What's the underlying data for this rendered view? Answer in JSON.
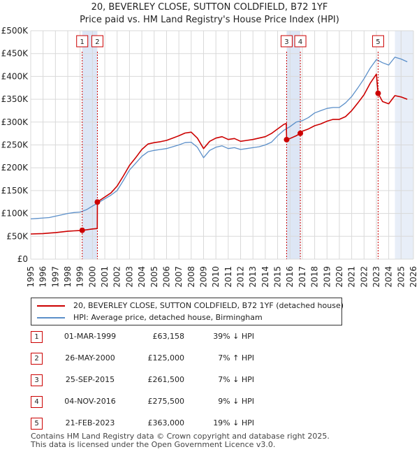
{
  "title": {
    "line1": "20, BEVERLEY CLOSE, SUTTON COLDFIELD, B72 1YF",
    "line2": "Price paid vs. HM Land Registry's House Price Index (HPI)"
  },
  "legend": {
    "series1_label": "20, BEVERLEY CLOSE, SUTTON COLDFIELD, B72 1YF (detached house)",
    "series2_label": "HPI: Average price, detached house, Birmingham"
  },
  "transactions": [
    {
      "num": "1",
      "date": "01-MAR-1999",
      "price": "£63,158",
      "hpi": "39% ↓ HPI"
    },
    {
      "num": "2",
      "date": "26-MAY-2000",
      "price": "£125,000",
      "hpi": "7% ↑ HPI"
    },
    {
      "num": "3",
      "date": "25-SEP-2015",
      "price": "£261,500",
      "hpi": "7% ↓ HPI"
    },
    {
      "num": "4",
      "date": "04-NOV-2016",
      "price": "£275,500",
      "hpi": "9% ↓ HPI"
    },
    {
      "num": "5",
      "date": "21-FEB-2023",
      "price": "£363,000",
      "hpi": "19% ↓ HPI"
    }
  ],
  "footer": {
    "line1": "Contains HM Land Registry data © Crown copyright and database right 2025.",
    "line2": "This data is licensed under the Open Government Licence v3.0."
  },
  "colors": {
    "property_line": "#cc0000",
    "hpi_line": "#5b8fc9",
    "sale_band": "#dde6f5",
    "future_band": "#e8eef8",
    "grid": "#d9d9d9"
  },
  "chart_data": {
    "type": "line",
    "title": "Price paid vs. HM Land Registry's House Price Index (HPI)",
    "xlabel": "",
    "ylabel": "",
    "xlim": [
      1995,
      2026
    ],
    "ylim": [
      0,
      500000
    ],
    "y_ticks": [
      0,
      50000,
      100000,
      150000,
      200000,
      250000,
      300000,
      350000,
      400000,
      450000,
      500000
    ],
    "y_tick_labels": [
      "£0",
      "£50K",
      "£100K",
      "£150K",
      "£200K",
      "£250K",
      "£300K",
      "£350K",
      "£400K",
      "£450K",
      "£500K"
    ],
    "x_ticks": [
      1995,
      1996,
      1997,
      1998,
      1999,
      2000,
      2001,
      2002,
      2003,
      2004,
      2005,
      2006,
      2007,
      2008,
      2009,
      2010,
      2011,
      2012,
      2013,
      2014,
      2015,
      2016,
      2017,
      2018,
      2019,
      2020,
      2021,
      2022,
      2023,
      2024,
      2025,
      2026
    ],
    "x_tick_labels": [
      "1995",
      "1996",
      "1997",
      "1998",
      "1999",
      "2000",
      "2001",
      "2002",
      "2003",
      "2004",
      "2005",
      "2006",
      "2007",
      "2008",
      "2009",
      "2010",
      "2011",
      "2012",
      "2013",
      "2014",
      "2015",
      "2016",
      "2017",
      "2018",
      "2019",
      "2020",
      "2021",
      "2022",
      "2023",
      "2024",
      "2025",
      "2026"
    ],
    "grid": true,
    "future_shade_from": 2024.5,
    "series": [
      {
        "name": "HPI: Average price, detached house, Birmingham",
        "x": [
          1995.0,
          1995.5,
          1996.0,
          1996.5,
          1997.0,
          1997.5,
          1998.0,
          1998.5,
          1999.0,
          1999.5,
          2000.0,
          2000.5,
          2001.0,
          2001.5,
          2002.0,
          2002.5,
          2003.0,
          2003.5,
          2004.0,
          2004.5,
          2005.0,
          2005.5,
          2006.0,
          2006.5,
          2007.0,
          2007.5,
          2008.0,
          2008.5,
          2009.0,
          2009.5,
          2010.0,
          2010.5,
          2011.0,
          2011.5,
          2012.0,
          2012.5,
          2013.0,
          2013.5,
          2014.0,
          2014.5,
          2015.0,
          2015.5,
          2016.0,
          2016.5,
          2017.0,
          2017.5,
          2018.0,
          2018.5,
          2019.0,
          2019.5,
          2020.0,
          2020.5,
          2021.0,
          2021.5,
          2022.0,
          2022.5,
          2023.0,
          2023.5,
          2024.0,
          2024.5,
          2025.0,
          2025.5
        ],
        "values": [
          88000,
          89000,
          90000,
          91000,
          94000,
          97000,
          100000,
          102000,
          103000,
          108000,
          116000,
          124000,
          132000,
          140000,
          150000,
          172000,
          195000,
          210000,
          225000,
          235000,
          238000,
          240000,
          242000,
          246000,
          250000,
          255000,
          256000,
          245000,
          222000,
          238000,
          245000,
          248000,
          242000,
          244000,
          240000,
          242000,
          244000,
          246000,
          250000,
          256000,
          270000,
          282000,
          290000,
          300000,
          303000,
          310000,
          320000,
          325000,
          330000,
          332000,
          332000,
          342000,
          356000,
          375000,
          395000,
          418000,
          437000,
          430000,
          425000,
          442000,
          438000,
          432000
        ]
      },
      {
        "name": "20, BEVERLEY CLOSE, SUTTON COLDFIELD, B72 1YF (detached house)",
        "x": [
          1995.0,
          1995.5,
          1996.0,
          1996.5,
          1997.0,
          1997.5,
          1998.0,
          1998.5,
          1999.0,
          1999.17,
          1999.5,
          2000.0,
          2000.39,
          2000.4,
          2000.5,
          2001.0,
          2001.5,
          2002.0,
          2002.5,
          2003.0,
          2003.5,
          2004.0,
          2004.5,
          2005.0,
          2005.5,
          2006.0,
          2006.5,
          2007.0,
          2007.5,
          2008.0,
          2008.5,
          2009.0,
          2009.5,
          2010.0,
          2010.5,
          2011.0,
          2011.5,
          2012.0,
          2012.5,
          2013.0,
          2013.5,
          2014.0,
          2014.5,
          2015.0,
          2015.5,
          2015.7,
          2015.73,
          2016.0,
          2016.5,
          2016.84,
          2017.0,
          2017.5,
          2018.0,
          2018.5,
          2019.0,
          2019.5,
          2020.0,
          2020.5,
          2021.0,
          2021.5,
          2022.0,
          2022.5,
          2023.0,
          2023.14,
          2023.5,
          2024.0,
          2024.5,
          2025.0,
          2025.5
        ],
        "values": [
          55000,
          55500,
          56000,
          57000,
          58000,
          59500,
          61000,
          62000,
          62500,
          63158,
          64000,
          66000,
          67000,
          125000,
          127000,
          136000,
          145000,
          160000,
          182000,
          205000,
          222000,
          240000,
          252000,
          255000,
          257000,
          260000,
          265000,
          270000,
          276000,
          278000,
          265000,
          242000,
          258000,
          265000,
          268000,
          262000,
          264000,
          258000,
          260000,
          262000,
          265000,
          268000,
          275000,
          285000,
          295000,
          297000,
          261500,
          264000,
          270000,
          275500,
          280000,
          285000,
          292000,
          296000,
          302000,
          306000,
          306000,
          312000,
          325000,
          342000,
          360000,
          385000,
          405000,
          363000,
          345000,
          340000,
          358000,
          355000,
          350000
        ]
      }
    ],
    "sales": [
      {
        "num": "1",
        "x": 1999.17,
        "value": 63158
      },
      {
        "num": "2",
        "x": 2000.4,
        "value": 125000
      },
      {
        "num": "3",
        "x": 2015.73,
        "value": 261500
      },
      {
        "num": "4",
        "x": 2016.84,
        "value": 275500
      },
      {
        "num": "5",
        "x": 2023.14,
        "value": 363000
      }
    ],
    "shaded_periods": [
      [
        1999.17,
        2000.4
      ],
      [
        2015.73,
        2016.84
      ]
    ]
  }
}
